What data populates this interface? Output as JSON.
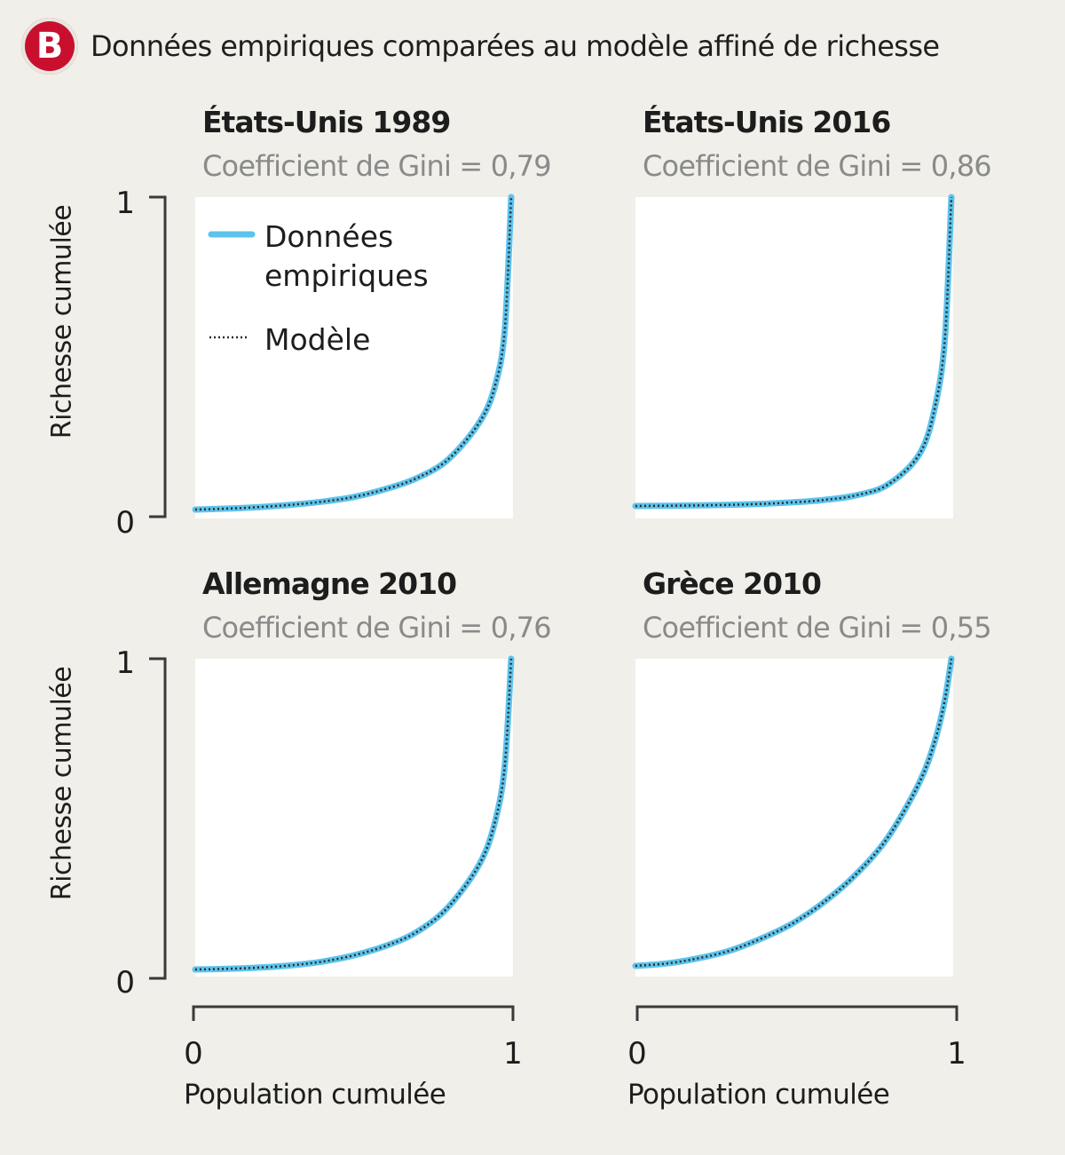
{
  "header": {
    "badge": "B",
    "title": "Données empiriques comparées au modèle affiné de richesse"
  },
  "legend": {
    "empirical": "Données empiriques",
    "empirical_line1": "Données",
    "empirical_line2": "empiriques",
    "model": "Modèle"
  },
  "axes": {
    "ylabel": "Richesse cumulée",
    "xlabel": "Population cumulée",
    "y_ticks": [
      "0",
      "1"
    ],
    "x_ticks": [
      "0",
      "1"
    ]
  },
  "colors": {
    "background": "#f0efe9",
    "plot_area": "#ffffff",
    "empirical": "#5cc3ec",
    "model": "#2b2b2b",
    "badge": "#c8102e",
    "gini_text": "#8a8a8a"
  },
  "chart_data": [
    {
      "type": "line",
      "title": "États-Unis 1989",
      "subtitle": "Coefficient de Gini = 0,79",
      "xlabel": "Population cumulée",
      "ylabel": "Richesse cumulée",
      "xlim": [
        0,
        1
      ],
      "ylim": [
        0,
        1
      ],
      "x": [
        0,
        0.1,
        0.2,
        0.3,
        0.4,
        0.5,
        0.6,
        0.7,
        0.8,
        0.9,
        0.95,
        0.98,
        1
      ],
      "series": [
        {
          "name": "Données empiriques",
          "values": [
            0,
            0.003,
            0.008,
            0.015,
            0.025,
            0.04,
            0.065,
            0.1,
            0.16,
            0.28,
            0.4,
            0.58,
            1
          ]
        },
        {
          "name": "Modèle",
          "values": [
            0,
            0.003,
            0.008,
            0.015,
            0.025,
            0.04,
            0.065,
            0.1,
            0.16,
            0.28,
            0.4,
            0.58,
            1
          ]
        }
      ]
    },
    {
      "type": "line",
      "title": "États-Unis 2016",
      "subtitle": "Coefficient de Gini = 0,86",
      "xlabel": "Population cumulée",
      "ylabel": "Richesse cumulée",
      "xlim": [
        0,
        1
      ],
      "ylim": [
        0,
        1
      ],
      "x": [
        0,
        0.1,
        0.2,
        0.3,
        0.4,
        0.5,
        0.6,
        0.7,
        0.8,
        0.9,
        0.95,
        0.98,
        1
      ],
      "series": [
        {
          "name": "Données empiriques",
          "values": [
            0,
            0.001,
            0.002,
            0.004,
            0.007,
            0.012,
            0.02,
            0.035,
            0.07,
            0.17,
            0.33,
            0.55,
            1
          ]
        },
        {
          "name": "Modèle",
          "values": [
            0,
            0.001,
            0.002,
            0.004,
            0.007,
            0.012,
            0.02,
            0.035,
            0.07,
            0.17,
            0.33,
            0.55,
            1
          ]
        }
      ]
    },
    {
      "type": "line",
      "title": "Allemagne 2010",
      "subtitle": "Coefficient de Gini = 0,76",
      "xlabel": "Population cumulée",
      "ylabel": "Richesse cumulée",
      "xlim": [
        0,
        1
      ],
      "ylim": [
        0,
        1
      ],
      "x": [
        0,
        0.1,
        0.2,
        0.3,
        0.4,
        0.5,
        0.6,
        0.7,
        0.8,
        0.9,
        0.95,
        0.98,
        1
      ],
      "series": [
        {
          "name": "Données empiriques",
          "values": [
            0,
            0.002,
            0.006,
            0.013,
            0.025,
            0.045,
            0.075,
            0.12,
            0.2,
            0.34,
            0.48,
            0.66,
            1
          ]
        },
        {
          "name": "Modèle",
          "values": [
            0,
            0.002,
            0.006,
            0.013,
            0.025,
            0.045,
            0.075,
            0.12,
            0.2,
            0.34,
            0.48,
            0.66,
            1
          ]
        }
      ]
    },
    {
      "type": "line",
      "title": "Grèce 2010",
      "subtitle": "Coefficient de Gini = 0,55",
      "xlabel": "Population cumulée",
      "ylabel": "Richesse cumulée",
      "xlim": [
        0,
        1
      ],
      "ylim": [
        0,
        1
      ],
      "x": [
        0,
        0.1,
        0.2,
        0.3,
        0.4,
        0.5,
        0.6,
        0.7,
        0.8,
        0.9,
        0.95,
        0.98,
        1
      ],
      "series": [
        {
          "name": "Données empiriques",
          "values": [
            0,
            0.008,
            0.025,
            0.05,
            0.09,
            0.14,
            0.21,
            0.3,
            0.42,
            0.6,
            0.74,
            0.87,
            1
          ]
        },
        {
          "name": "Modèle",
          "values": [
            0,
            0.008,
            0.025,
            0.05,
            0.09,
            0.14,
            0.21,
            0.3,
            0.42,
            0.6,
            0.74,
            0.87,
            1
          ]
        }
      ]
    }
  ]
}
